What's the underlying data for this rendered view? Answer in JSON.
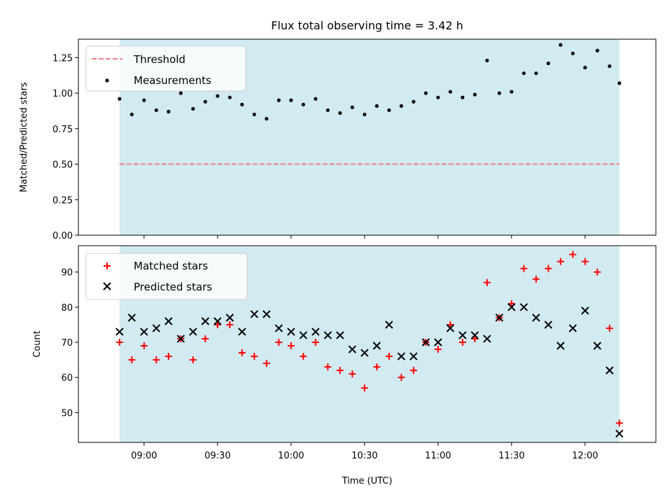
{
  "chart_data": [
    {
      "type": "scatter",
      "title": "Flux total observing time = 3.42 h",
      "xlabel": "",
      "ylabel": "Matched/Predicted stars",
      "ylim": [
        0,
        1.38
      ],
      "yticks": [
        0.0,
        0.25,
        0.5,
        0.75,
        1.0,
        1.25
      ],
      "ytick_labels": [
        "0.00",
        "0.25",
        "0.50",
        "0.75",
        "1.00",
        "1.25"
      ],
      "grid": false,
      "legend_position": "top-left",
      "shaded_span": {
        "start": "08:50",
        "end": "12:14",
        "color": "#add8e6"
      },
      "threshold": {
        "name": "Threshold",
        "value": 0.5,
        "color": "#f08080"
      },
      "series": [
        {
          "name": "Measurements",
          "marker": "dot",
          "color": "#000000",
          "x": [
            "08:50",
            "08:55",
            "09:00",
            "09:05",
            "09:10",
            "09:15",
            "09:20",
            "09:25",
            "09:30",
            "09:35",
            "09:40",
            "09:45",
            "09:50",
            "09:55",
            "10:00",
            "10:05",
            "10:10",
            "10:15",
            "10:20",
            "10:25",
            "10:30",
            "10:35",
            "10:40",
            "10:45",
            "10:50",
            "10:55",
            "11:00",
            "11:05",
            "11:10",
            "11:15",
            "11:20",
            "11:25",
            "11:30",
            "11:35",
            "11:40",
            "11:45",
            "11:50",
            "11:55",
            "12:00",
            "12:05",
            "12:10",
            "12:14"
          ],
          "values": [
            0.96,
            0.85,
            0.95,
            0.88,
            0.87,
            1.0,
            0.89,
            0.94,
            0.98,
            0.97,
            0.92,
            0.85,
            0.82,
            0.95,
            0.95,
            0.92,
            0.96,
            0.88,
            0.86,
            0.9,
            0.85,
            0.91,
            0.88,
            0.91,
            0.94,
            1.0,
            0.97,
            1.01,
            0.97,
            0.99,
            1.23,
            1.0,
            1.01,
            1.14,
            1.14,
            1.21,
            1.34,
            1.28,
            1.18,
            1.3,
            1.19,
            1.07
          ]
        }
      ]
    },
    {
      "type": "scatter",
      "title": "",
      "xlabel": "Time (UTC)",
      "ylabel": "Count",
      "ylim": [
        41.5,
        97.5
      ],
      "yticks": [
        50,
        60,
        70,
        80,
        90
      ],
      "ytick_labels": [
        "50",
        "60",
        "70",
        "80",
        "90"
      ],
      "xtick_labels": [
        "09:00",
        "09:30",
        "10:00",
        "10:30",
        "11:00",
        "11:30",
        "12:00"
      ],
      "xticks": [
        "09:00",
        "09:30",
        "10:00",
        "10:30",
        "11:00",
        "11:30",
        "12:00"
      ],
      "grid": false,
      "legend_position": "top-left",
      "shaded_span": {
        "start": "08:50",
        "end": "12:14",
        "color": "#add8e6"
      },
      "series": [
        {
          "name": "Matched stars",
          "marker": "plus",
          "color": "#ff0000",
          "x": [
            "08:50",
            "08:55",
            "09:00",
            "09:05",
            "09:10",
            "09:15",
            "09:20",
            "09:25",
            "09:30",
            "09:35",
            "09:40",
            "09:45",
            "09:50",
            "09:55",
            "10:00",
            "10:05",
            "10:10",
            "10:15",
            "10:20",
            "10:25",
            "10:30",
            "10:35",
            "10:40",
            "10:45",
            "10:50",
            "10:55",
            "11:00",
            "11:05",
            "11:10",
            "11:15",
            "11:20",
            "11:25",
            "11:30",
            "11:35",
            "11:40",
            "11:45",
            "11:50",
            "11:55",
            "12:00",
            "12:05",
            "12:10",
            "12:14"
          ],
          "values": [
            70,
            65,
            69,
            65,
            66,
            71,
            65,
            71,
            75,
            75,
            67,
            66,
            64,
            70,
            69,
            66,
            70,
            63,
            62,
            61,
            57,
            63,
            66,
            60,
            62,
            70,
            68,
            75,
            70,
            71,
            87,
            77,
            81,
            91,
            88,
            91,
            93,
            95,
            93,
            90,
            74,
            47
          ]
        },
        {
          "name": "Predicted stars",
          "marker": "x",
          "color": "#000000",
          "x": [
            "08:50",
            "08:55",
            "09:00",
            "09:05",
            "09:10",
            "09:15",
            "09:20",
            "09:25",
            "09:30",
            "09:35",
            "09:40",
            "09:45",
            "09:50",
            "09:55",
            "10:00",
            "10:05",
            "10:10",
            "10:15",
            "10:20",
            "10:25",
            "10:30",
            "10:35",
            "10:40",
            "10:45",
            "10:50",
            "10:55",
            "11:00",
            "11:05",
            "11:10",
            "11:15",
            "11:20",
            "11:25",
            "11:30",
            "11:35",
            "11:40",
            "11:45",
            "11:50",
            "11:55",
            "12:00",
            "12:05",
            "12:10",
            "12:14"
          ],
          "values": [
            73,
            77,
            73,
            74,
            76,
            71,
            73,
            76,
            76,
            77,
            73,
            78,
            78,
            74,
            73,
            72,
            73,
            72,
            72,
            68,
            67,
            69,
            75,
            66,
            66,
            70,
            70,
            74,
            72,
            72,
            71,
            77,
            80,
            80,
            77,
            75,
            69,
            74,
            79,
            69,
            62,
            44
          ]
        }
      ]
    }
  ],
  "colors": {
    "span_fill": "#add8e6",
    "threshold": "#f08080",
    "matched": "#ff0000",
    "predicted": "#000000",
    "measurement": "#000000"
  }
}
